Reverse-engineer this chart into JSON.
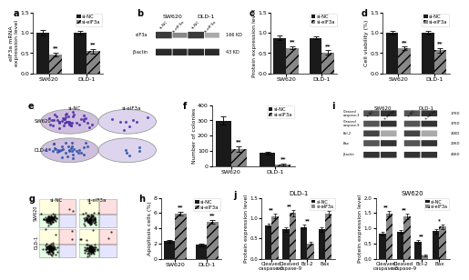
{
  "panel_a": {
    "ylabel": "eIF3a mRNA\nexpression level",
    "categories": [
      "SW620",
      "DLD-1"
    ],
    "si_NC": [
      1.0,
      1.0
    ],
    "si_eIF3a": [
      0.47,
      0.55
    ],
    "si_NC_err": [
      0.06,
      0.05
    ],
    "si_eIF3a_err": [
      0.05,
      0.06
    ],
    "ylim": [
      0,
      1.5
    ],
    "yticks": [
      0.0,
      0.5,
      1.0,
      1.5
    ],
    "ann": [
      "**",
      "**"
    ]
  },
  "panel_c": {
    "ylabel": "Protein expression level",
    "categories": [
      "SW620",
      "DLD-1"
    ],
    "si_NC": [
      0.88,
      0.88
    ],
    "si_eIF3a": [
      0.63,
      0.52
    ],
    "si_NC_err": [
      0.05,
      0.04
    ],
    "si_eIF3a_err": [
      0.04,
      0.05
    ],
    "ylim": [
      0,
      1.5
    ],
    "yticks": [
      0.0,
      0.5,
      1.0,
      1.5
    ],
    "ann": [
      "**",
      "**"
    ]
  },
  "panel_d": {
    "ylabel": "Cell viability (%)",
    "categories": [
      "SW620",
      "DLD-1"
    ],
    "si_NC": [
      1.0,
      1.0
    ],
    "si_eIF3a": [
      0.62,
      0.57
    ],
    "si_NC_err": [
      0.05,
      0.04
    ],
    "si_eIF3a_err": [
      0.04,
      0.05
    ],
    "ylim": [
      0,
      1.5
    ],
    "yticks": [
      0.0,
      0.5,
      1.0,
      1.5
    ],
    "ann": [
      "**",
      "**"
    ]
  },
  "panel_f": {
    "ylabel": "Number of colonies",
    "categories": [
      "SW620",
      "DLD-1"
    ],
    "si_NC": [
      298,
      85
    ],
    "si_eIF3a": [
      112,
      12
    ],
    "si_NC_err": [
      28,
      10
    ],
    "si_eIF3a_err": [
      18,
      5
    ],
    "ylim": [
      0,
      400
    ],
    "yticks": [
      0,
      100,
      200,
      300,
      400
    ],
    "ann": [
      "**",
      "**"
    ]
  },
  "panel_h": {
    "ylabel": "Apoptosis cells (%)",
    "categories": [
      "SW620",
      "DLD-1"
    ],
    "si_NC": [
      2.3,
      1.85
    ],
    "si_eIF3a": [
      5.95,
      4.85
    ],
    "si_NC_err": [
      0.2,
      0.18
    ],
    "si_eIF3a_err": [
      0.25,
      0.22
    ],
    "ylim": [
      0,
      8
    ],
    "yticks": [
      0,
      2,
      4,
      6,
      8
    ],
    "ann": [
      "**",
      "**"
    ]
  },
  "panel_j_dld1": {
    "title": "DLD-1",
    "ylabel": "Protein expression level",
    "categories": [
      "Cleaved\ncaspase-3",
      "Cleaved\ncaspase-9",
      "Bcl-2",
      "Bax"
    ],
    "si_NC": [
      0.82,
      0.72,
      0.78,
      0.72
    ],
    "si_eIF3a": [
      1.05,
      1.12,
      0.38,
      1.1
    ],
    "si_NC_err": [
      0.05,
      0.06,
      0.05,
      0.06
    ],
    "si_eIF3a_err": [
      0.06,
      0.07,
      0.04,
      0.07
    ],
    "ylim": [
      0,
      1.5
    ],
    "yticks": [
      0.0,
      0.5,
      1.0,
      1.5
    ],
    "ann": [
      "**",
      "**",
      "**",
      "**"
    ]
  },
  "panel_j_sw620": {
    "title": "SW620",
    "ylabel": "Protein expression level",
    "categories": [
      "Cleaved\ncaspase-3",
      "Cleaved\ncaspase-9",
      "Bcl-2",
      "Bax"
    ],
    "si_NC": [
      0.82,
      0.88,
      0.55,
      0.9
    ],
    "si_eIF3a": [
      1.48,
      1.38,
      0.12,
      1.05
    ],
    "si_NC_err": [
      0.06,
      0.07,
      0.05,
      0.07
    ],
    "si_eIF3a_err": [
      0.08,
      0.09,
      0.03,
      0.08
    ],
    "ylim": [
      0,
      2.0
    ],
    "yticks": [
      0.0,
      0.5,
      1.0,
      1.5,
      2.0
    ],
    "ann": [
      "**",
      "**",
      "**",
      "*"
    ]
  },
  "panel_b": {
    "sw620_label": "SW620",
    "dld1_label": "DLD-1",
    "eif3a_label": "eIF3a",
    "actin_label": "β-actin",
    "eif3a_kd": "166 KD",
    "actin_kd": "43 KD"
  },
  "panel_i": {
    "sw620_label": "SW620",
    "dld1_label": "DLD-1",
    "proteins": [
      "Cleaved\ncaspase-3",
      "Cleaved\ncaspase-9",
      "Bcl-2",
      "Bax",
      "β-actin"
    ],
    "kds": [
      "17KD",
      "37KD",
      "26KD",
      "20KD",
      "43KD"
    ]
  },
  "colors": {
    "si_NC": "#1a1a1a",
    "si_eIF3a": "#888888",
    "si_eIF3a_hatch": "///"
  },
  "legend": {
    "si_NC_label": "si-NC",
    "si_eIF3a_label": "si-eIF3a"
  },
  "background_color": "#ffffff"
}
